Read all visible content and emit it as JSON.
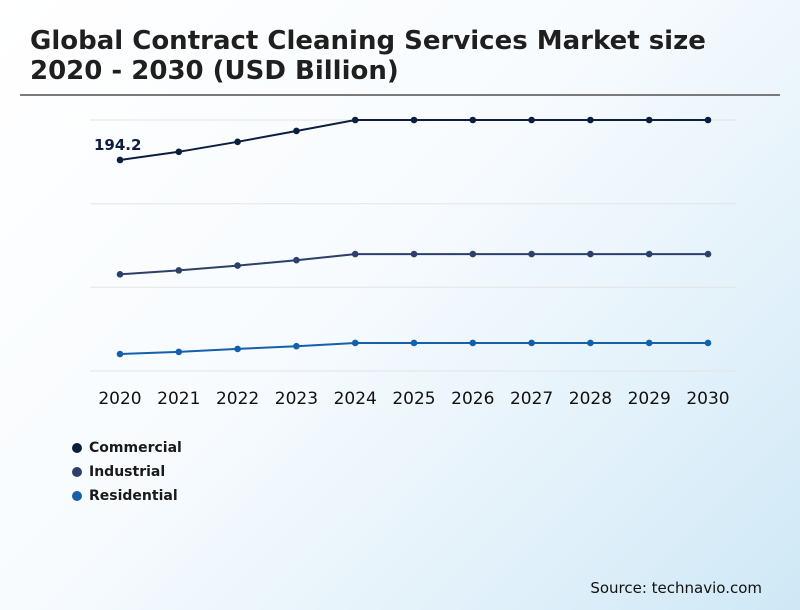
{
  "header": {
    "title": "Global Contract Cleaning Services Market size 2020 - 2030 (USD Billion)"
  },
  "footer": {
    "source": "Source: technavio.com"
  },
  "chart_data": {
    "type": "line",
    "title": "Global Contract Cleaning Services Market size 2020 - 2030 (USD Billion)",
    "xlabel": "",
    "ylabel": "",
    "x": [
      "2020",
      "2021",
      "2022",
      "2023",
      "2024",
      "2025",
      "2026",
      "2027",
      "2028",
      "2029",
      "2030"
    ],
    "ylim": [
      0,
      450
    ],
    "grid": true,
    "legend_position": "bottom-left",
    "series": [
      {
        "name": "Commercial",
        "color": "#0b1e3f",
        "values": [
          194.2,
          201.7,
          210.9,
          220.9,
          231.0,
          231.0,
          231.0,
          231.0,
          231.0,
          231.0,
          231.0
        ],
        "labels": [
          "194.2",
          "",
          "",
          "",
          "",
          "",
          "",
          "",
          "",
          "",
          ""
        ]
      },
      {
        "name": "Industrial",
        "color": "#2d3f6b",
        "values": [
          89.0,
          92.6,
          97.0,
          102.0,
          107.6,
          107.6,
          107.6,
          107.6,
          107.6,
          107.6,
          107.6
        ],
        "labels": [
          "",
          "",
          "",
          "",
          "",
          "",
          "",
          "",
          "",
          "",
          ""
        ]
      },
      {
        "name": "Residential",
        "color": "#1460aa",
        "values": [
          15.6,
          17.6,
          20.3,
          22.8,
          25.8,
          25.8,
          25.8,
          25.8,
          25.8,
          25.8,
          25.8
        ],
        "labels": [
          "",
          "",
          "",
          "",
          "",
          "",
          "",
          "",
          "",
          "",
          ""
        ]
      }
    ]
  }
}
